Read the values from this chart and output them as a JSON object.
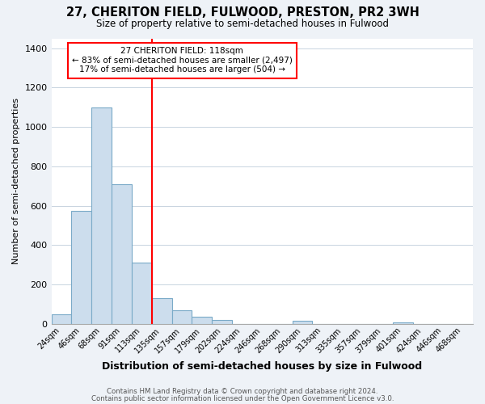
{
  "title": "27, CHERITON FIELD, FULWOOD, PRESTON, PR2 3WH",
  "subtitle": "Size of property relative to semi-detached houses in Fulwood",
  "xlabel": "Distribution of semi-detached houses by size in Fulwood",
  "ylabel": "Number of semi-detached properties",
  "bar_labels": [
    "24sqm",
    "46sqm",
    "68sqm",
    "91sqm",
    "113sqm",
    "135sqm",
    "157sqm",
    "179sqm",
    "202sqm",
    "224sqm",
    "246sqm",
    "268sqm",
    "290sqm",
    "313sqm",
    "335sqm",
    "357sqm",
    "379sqm",
    "401sqm",
    "424sqm",
    "446sqm",
    "468sqm"
  ],
  "bar_values": [
    50,
    575,
    1100,
    710,
    310,
    130,
    70,
    35,
    20,
    0,
    0,
    0,
    15,
    0,
    0,
    0,
    0,
    10,
    0,
    0,
    0
  ],
  "bar_color": "#ccdded",
  "bar_edge_color": "#7aaac8",
  "annotation_text_line1": "27 CHERITON FIELD: 118sqm",
  "annotation_text_line2": "← 83% of semi-detached houses are smaller (2,497)",
  "annotation_text_line3": "17% of semi-detached houses are larger (504) →",
  "ylim": [
    0,
    1450
  ],
  "yticks": [
    0,
    200,
    400,
    600,
    800,
    1000,
    1200,
    1400
  ],
  "footer_line1": "Contains HM Land Registry data © Crown copyright and database right 2024.",
  "footer_line2": "Contains public sector information licensed under the Open Government Licence v3.0.",
  "bg_color": "#eef2f7",
  "plot_bg_color": "#ffffff",
  "grid_color": "#c8d4e0",
  "red_line_bar_index": 4,
  "bar_width": 1.0
}
